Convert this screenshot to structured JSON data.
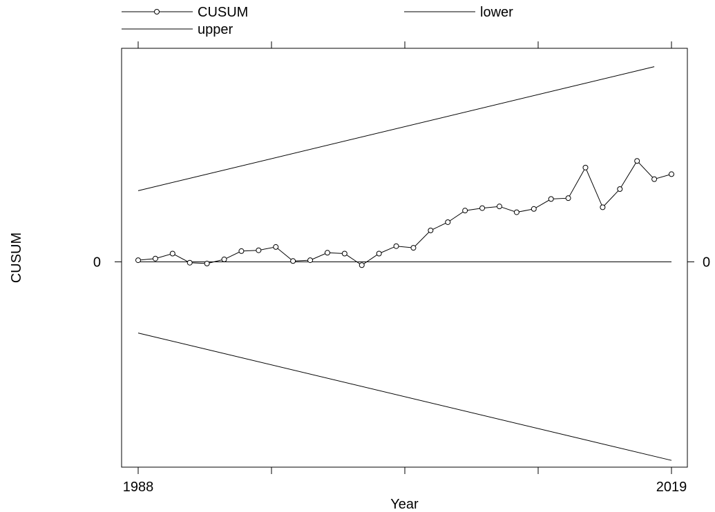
{
  "chart_data": {
    "type": "line",
    "title": "",
    "xlabel": "Year",
    "ylabel": "CUSUM",
    "xlim": [
      1988,
      2019
    ],
    "ylim": [
      -12.2,
      12.7
    ],
    "x_ticks": [
      1988,
      2019
    ],
    "x_tick_labels": [
      "1988",
      "2019"
    ],
    "y_ticks": [
      0
    ],
    "y_tick_labels": [
      "0"
    ],
    "grid": false,
    "legend_position": "top",
    "colors": {
      "line": "#000000",
      "background": "#ffffff"
    },
    "series": [
      {
        "name": "CUSUM",
        "marker": "circle",
        "x": [
          1988,
          1989,
          1990,
          1991,
          1992,
          1993,
          1994,
          1995,
          1996,
          1997,
          1998,
          1999,
          2000,
          2001,
          2002,
          2003,
          2004,
          2005,
          2006,
          2007,
          2008,
          2009,
          2010,
          2011,
          2012,
          2013,
          2014,
          2015,
          2016,
          2017,
          2018,
          2019
        ],
        "values": [
          0.1,
          0.2,
          0.5,
          -0.05,
          -0.1,
          0.15,
          0.65,
          0.7,
          0.9,
          0.05,
          0.1,
          0.55,
          0.5,
          -0.2,
          0.5,
          0.95,
          0.85,
          1.9,
          2.4,
          3.1,
          3.25,
          3.35,
          3.0,
          3.2,
          3.8,
          3.85,
          5.7,
          3.3,
          4.4,
          6.1,
          5.0,
          5.3
        ]
      },
      {
        "name": "lower",
        "x": [
          1988,
          2019
        ],
        "values": [
          -4.3,
          -12.0
        ]
      },
      {
        "name": "upper",
        "x": [
          1988,
          2018
        ],
        "values": [
          4.3,
          11.8
        ]
      }
    ]
  }
}
